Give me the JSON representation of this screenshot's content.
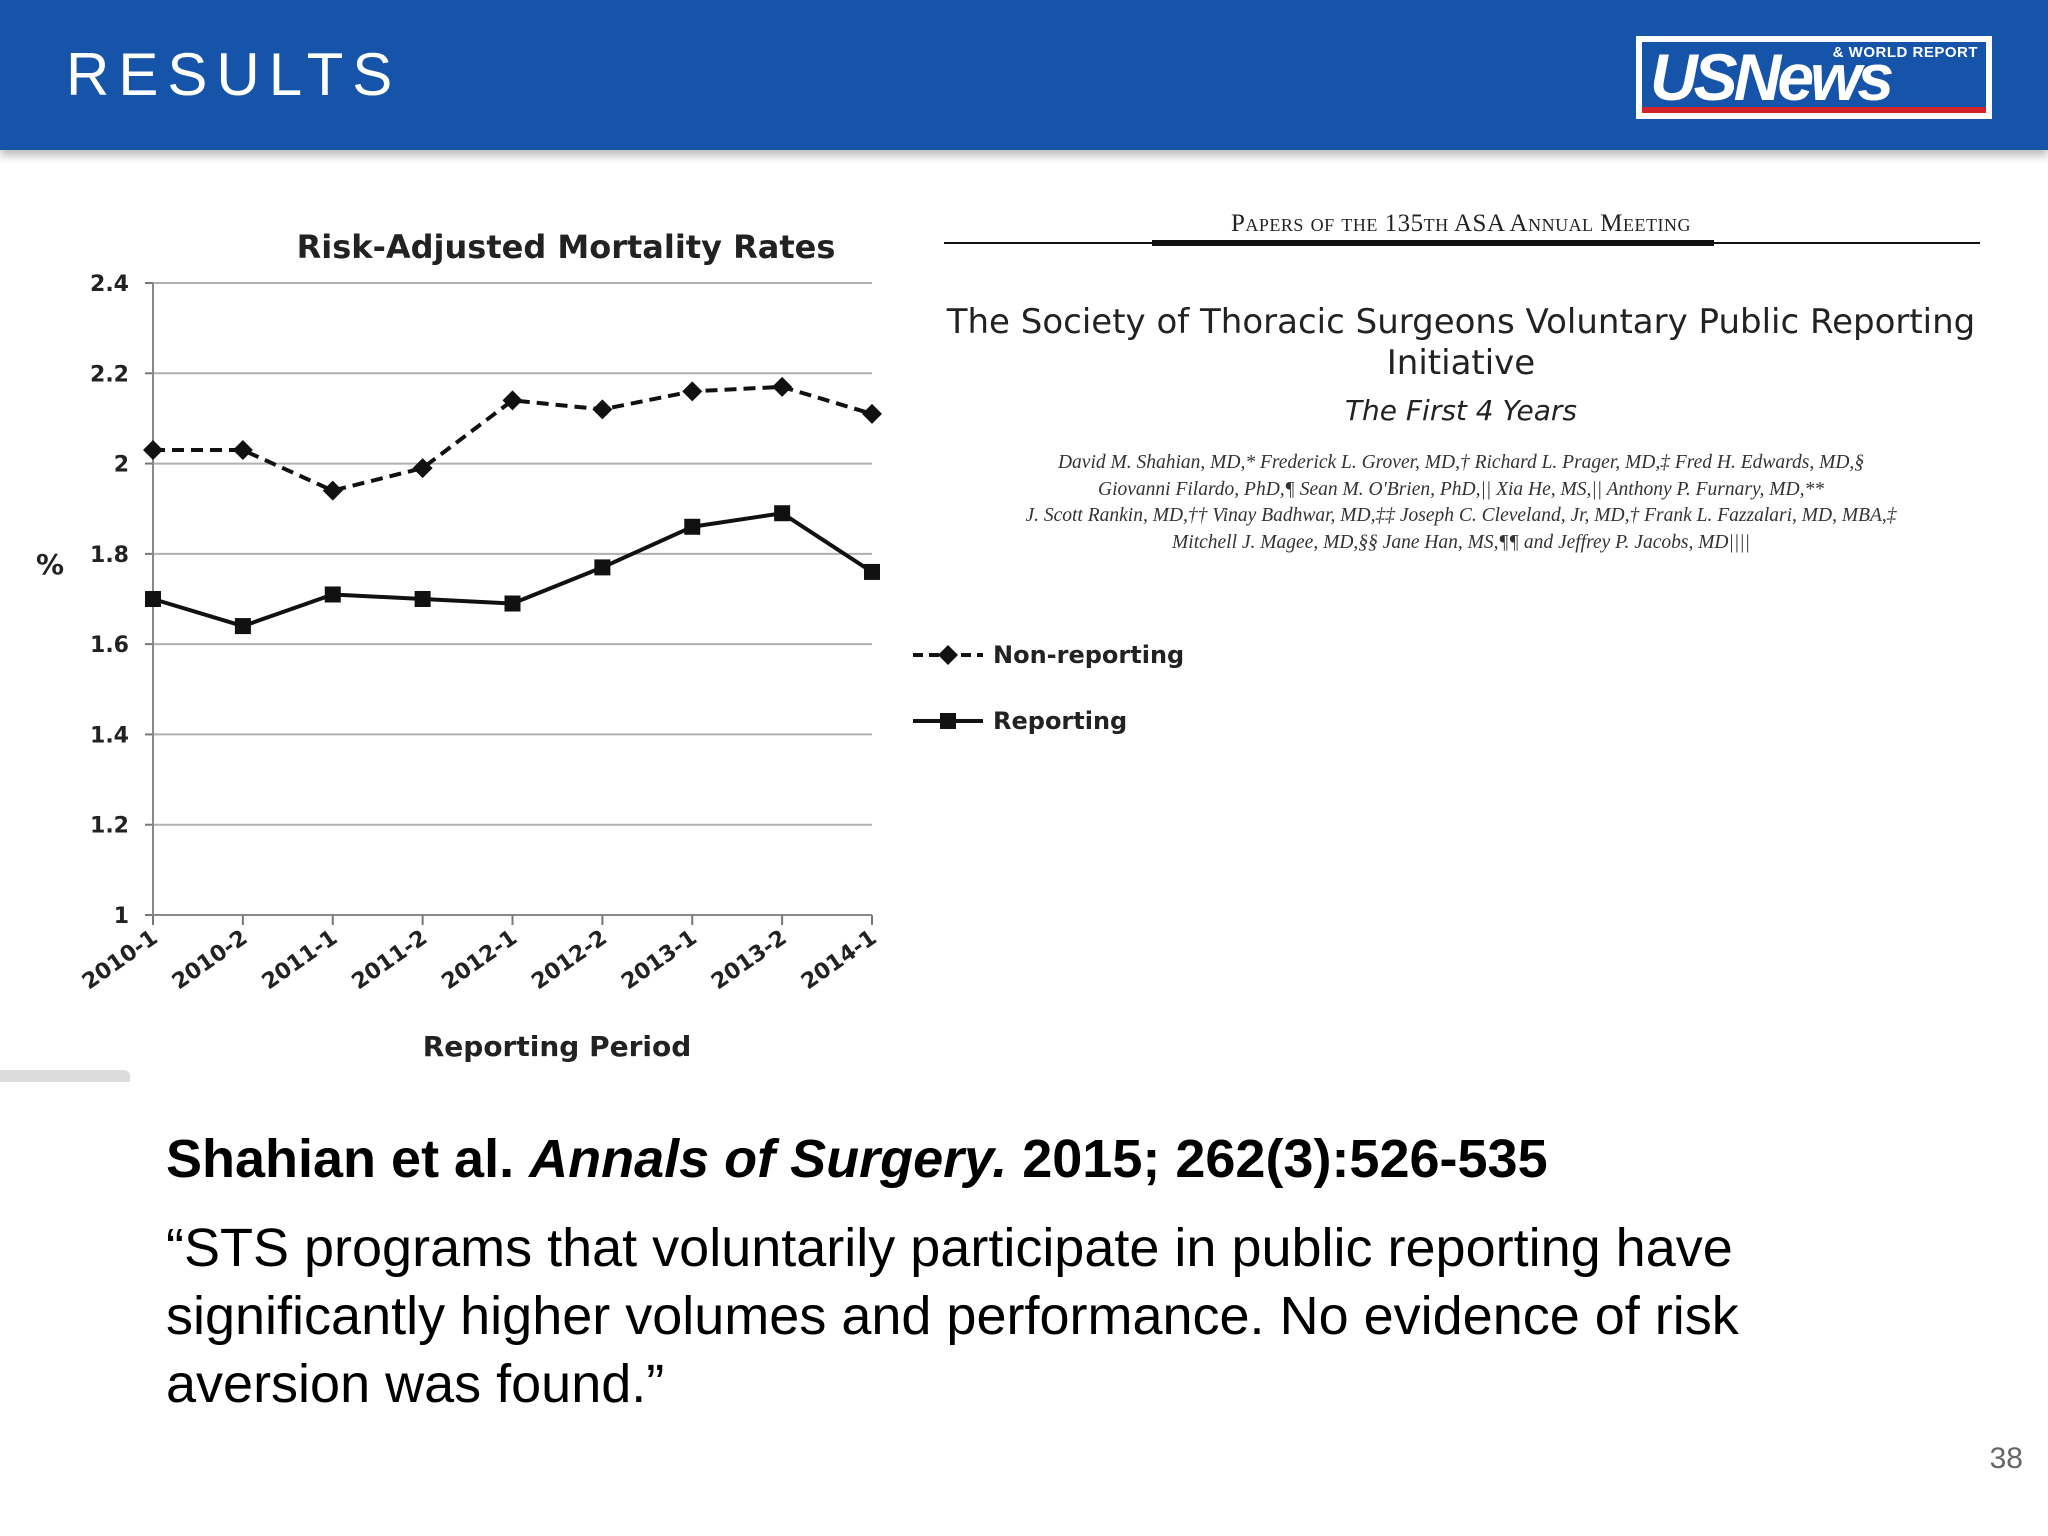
{
  "header": {
    "title": "RESULTS",
    "logo_main": "USNews",
    "logo_small": "& WORLD REPORT",
    "logo_accent_color": "#d2232a",
    "background_color": "#1554a8"
  },
  "chart_data": {
    "type": "line",
    "title": "Risk-Adjusted Mortality Rates",
    "xlabel": "Reporting Period",
    "ylabel": "%",
    "ylim": [
      1,
      2.4
    ],
    "yticks": [
      "2.4",
      "2.2",
      "2",
      "1.8",
      "1.6",
      "1.4",
      "1.2",
      "1"
    ],
    "ytick_values": [
      2.4,
      2.2,
      2.0,
      1.8,
      1.6,
      1.4,
      1.2,
      1.0
    ],
    "grid": true,
    "legend_position": "right",
    "categories": [
      "2010-1",
      "2010-2",
      "2011-1",
      "2011-2",
      "2012-1",
      "2012-2",
      "2013-1",
      "2013-2",
      "2014-1"
    ],
    "series": [
      {
        "name": "Non-reporting",
        "style": "dashed",
        "marker": "diamond",
        "values": [
          2.03,
          2.03,
          1.94,
          1.99,
          2.14,
          2.12,
          2.16,
          2.17,
          2.11
        ]
      },
      {
        "name": "Reporting",
        "style": "solid",
        "marker": "square",
        "values": [
          1.7,
          1.64,
          1.71,
          1.7,
          1.69,
          1.77,
          1.86,
          1.89,
          1.76
        ]
      }
    ]
  },
  "paper": {
    "meeting": "Papers of the 135th ASA Annual Meeting",
    "title": "The Society of Thoracic Surgeons Voluntary Public Reporting Initiative",
    "subtitle": "The First 4 Years",
    "authors": [
      "David M. Shahian, MD,* Frederick L. Grover, MD,† Richard L. Prager, MD,‡ Fred H. Edwards, MD,§",
      "Giovanni Filardo, PhD,¶ Sean M. O'Brien, PhD,|| Xia He, MS,|| Anthony P. Furnary, MD,**",
      "J. Scott Rankin, MD,†† Vinay Badhwar, MD,‡‡ Joseph C. Cleveland, Jr, MD,† Frank L. Fazzalari, MD, MBA,‡",
      "Mitchell J. Magee, MD,§§ Jane Han, MS,¶¶ and Jeffrey P. Jacobs, MD||||"
    ]
  },
  "citation": {
    "authors": "Shahian et al.",
    "journal": "Annals of Surgery.",
    "details": "2015; 262(3):526-535"
  },
  "quote": "“STS programs that voluntarily participate in public reporting have significantly higher volumes and performance. No evidence of risk aversion was found.”",
  "page_number": "38"
}
